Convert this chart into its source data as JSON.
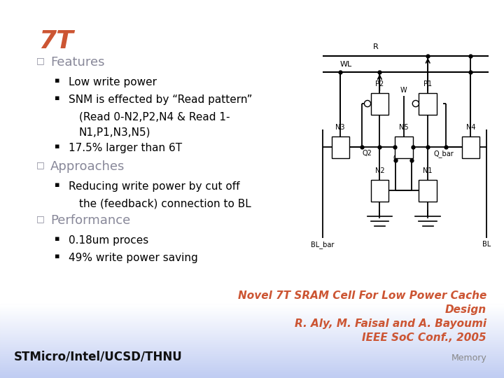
{
  "bg_color": "#ffffff",
  "title_text": "7T",
  "title_color": "#cc5533",
  "title_fontsize": 26,
  "bullet1_color": "#888899",
  "bullet2_color": "#000000",
  "footer_ref_line1": "Novel 7T SRAM Cell For Low Power Cache",
  "footer_ref_line2": "Design",
  "footer_ref_line3": "R. Aly, M. Faisal and A. Bayoumi",
  "footer_ref_line4": "IEEE SoC Conf., 2005",
  "footer_ref_color": "#cc5533",
  "footer_left": "STMicro/Intel/UCSD/THNU",
  "footer_right": "Memory",
  "content": [
    {
      "level": 1,
      "text": "Features"
    },
    {
      "level": 2,
      "text": "Low write power"
    },
    {
      "level": 2,
      "text": "SNM is effected by “Read pattern”"
    },
    {
      "level": 3,
      "text": "(Read 0-N2,P2,N4 & Read 1-"
    },
    {
      "level": 3,
      "text": "N1,P1,N3,N5)"
    },
    {
      "level": 2,
      "text": "17.5% larger than 6T"
    },
    {
      "level": 1,
      "text": "Approaches"
    },
    {
      "level": 2,
      "text": "Reducing write power by cut off"
    },
    {
      "level": 3,
      "text": "the (feedback) connection to BL"
    },
    {
      "level": 1,
      "text": "Performance"
    },
    {
      "level": 2,
      "text": "0.18um proces"
    },
    {
      "level": 2,
      "text": "49% write power saving"
    }
  ]
}
